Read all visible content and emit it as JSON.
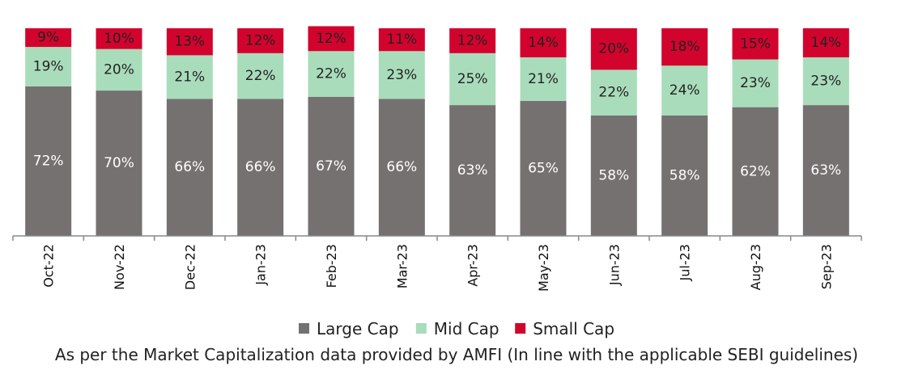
{
  "chart_data": {
    "type": "bar",
    "stacked": true,
    "categories": [
      "Oct-22",
      "Nov-22",
      "Dec-22",
      "Jan-23",
      "Feb-23",
      "Mar-23",
      "Apr-23",
      "May-23",
      "Jun-23",
      "Jul-23",
      "Aug-23",
      "Sep-23"
    ],
    "series": [
      {
        "name": "Large Cap",
        "color": "#757170",
        "values": [
          72,
          70,
          66,
          66,
          67,
          66,
          63,
          65,
          58,
          58,
          62,
          63
        ],
        "label_color": "#ffffff"
      },
      {
        "name": "Mid Cap",
        "color": "#a9dcbb",
        "values": [
          19,
          20,
          21,
          22,
          22,
          23,
          25,
          21,
          22,
          24,
          23,
          23
        ],
        "label_color": "#222222"
      },
      {
        "name": "Small Cap",
        "color": "#d2042d",
        "values": [
          9,
          10,
          13,
          12,
          12,
          11,
          12,
          14,
          20,
          18,
          15,
          14
        ],
        "label_color": "#222222"
      }
    ],
    "ylim": [
      0,
      100
    ],
    "grid": false,
    "legend_position": "bottom",
    "footnote": "As per the Market Capitalization data provided by AMFI (In line with the applicable SEBI guidelines)"
  }
}
